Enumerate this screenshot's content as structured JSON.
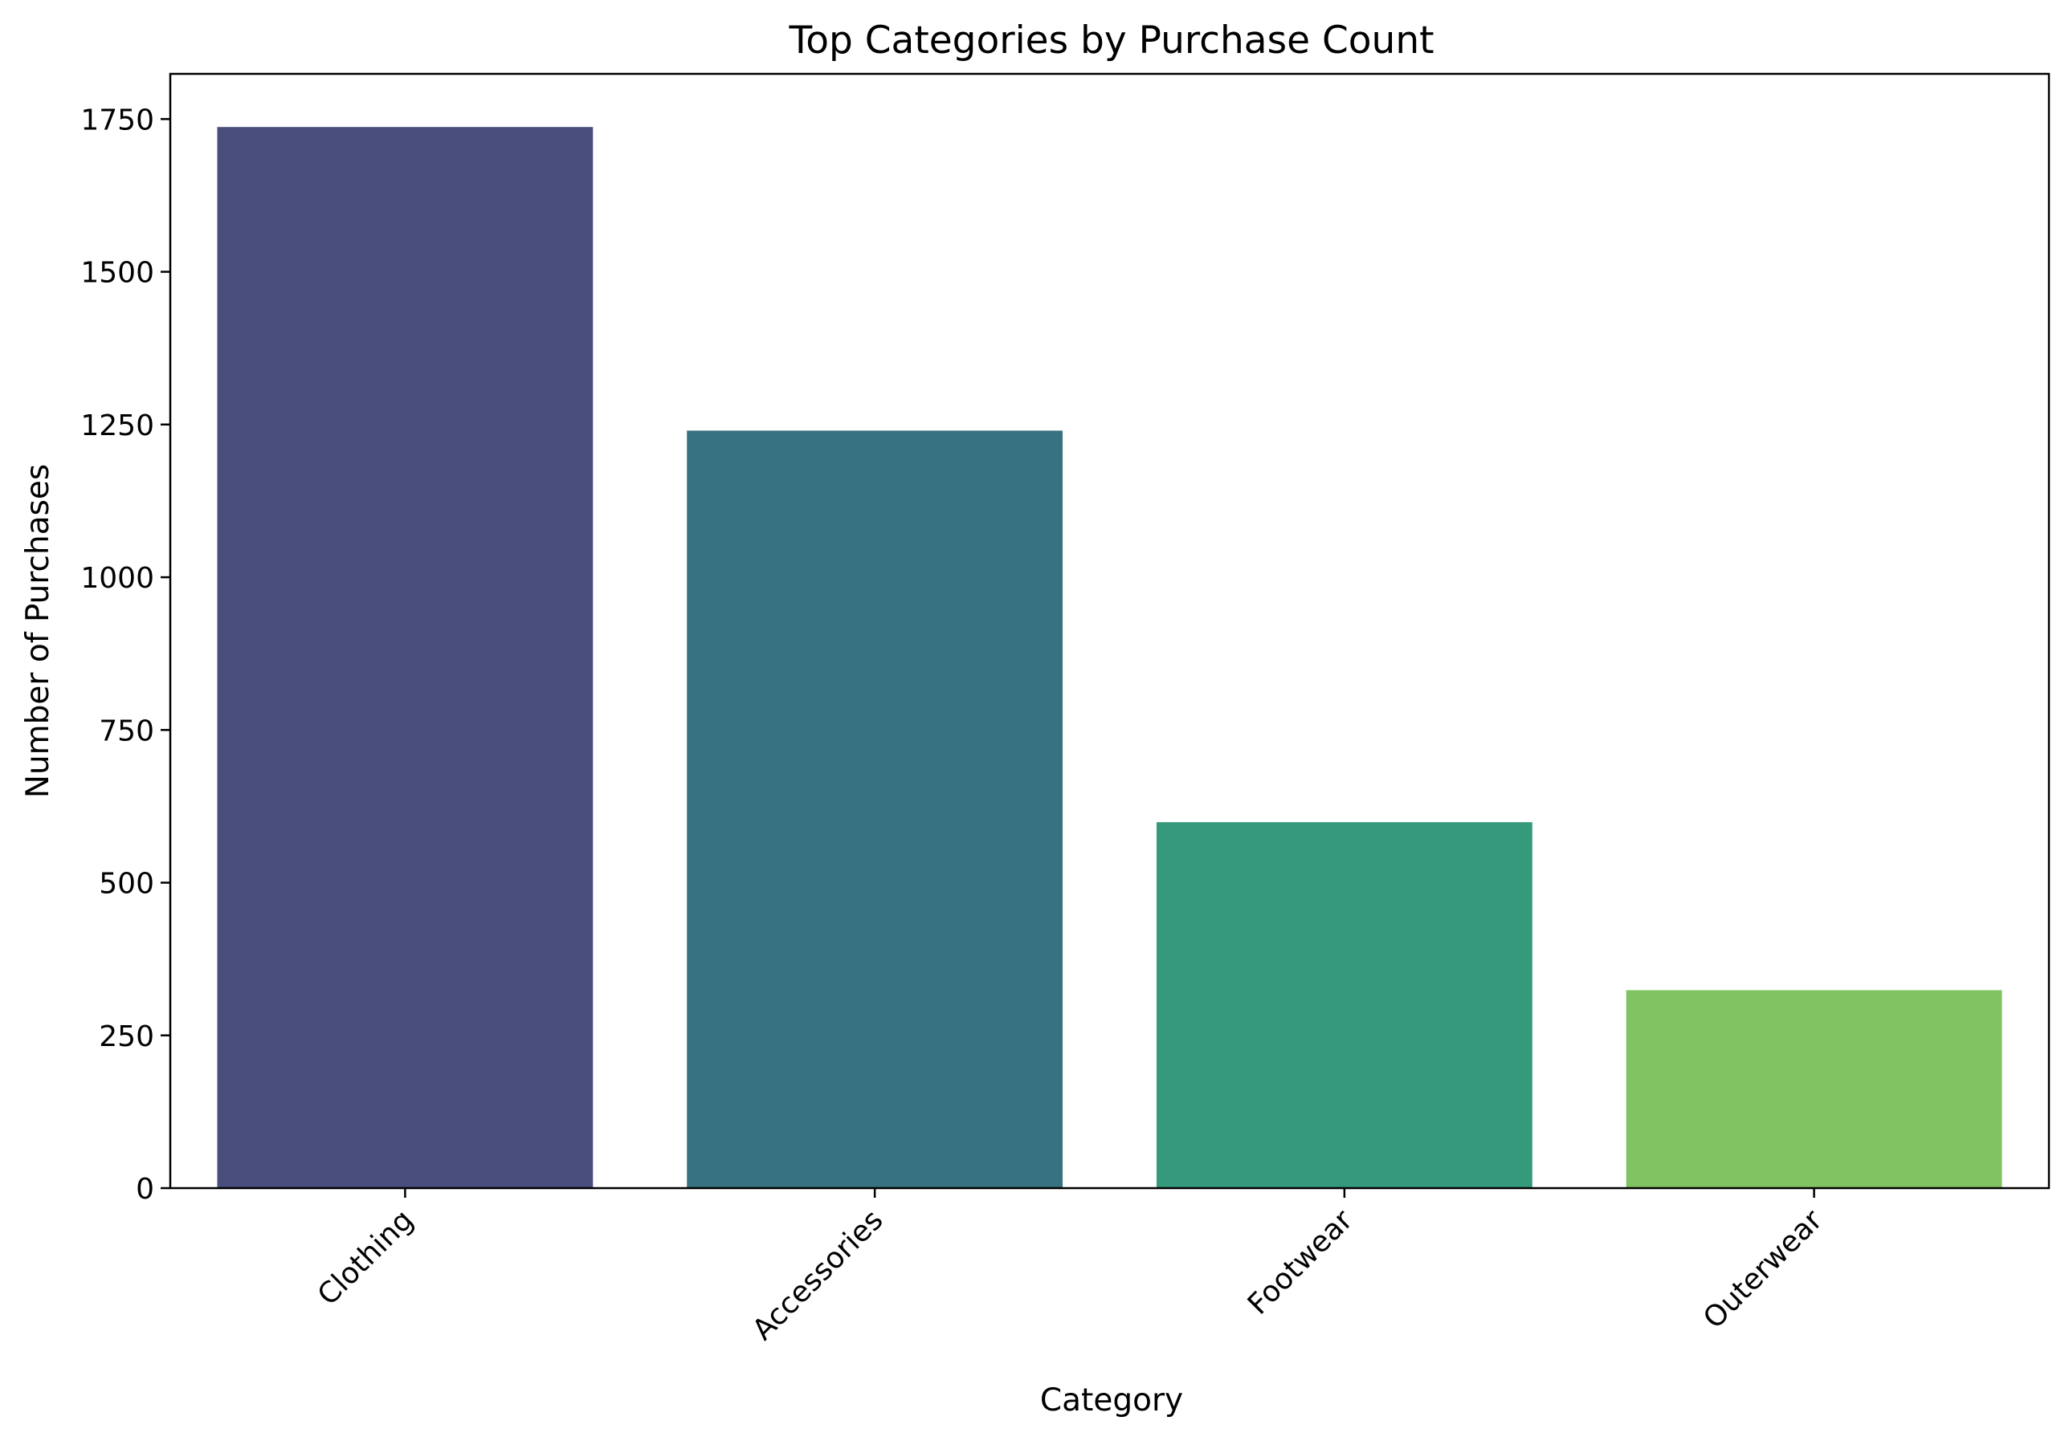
{
  "chart_data": {
    "type": "bar",
    "title": "Top Categories by Purchase Count",
    "xlabel": "Category",
    "ylabel": "Number of Purchases",
    "categories": [
      "Clothing",
      "Accessories",
      "Footwear",
      "Outerwear"
    ],
    "values": [
      1737,
      1240,
      599,
      324
    ],
    "colors": [
      "#4a4e7c",
      "#377280",
      "#359a7c",
      "#81c262"
    ],
    "ylim": [
      0,
      1824
    ],
    "yticks": [
      0,
      250,
      500,
      750,
      1000,
      1250,
      1500,
      1750
    ],
    "grid": false,
    "legend": "none",
    "xtick_rotation_deg": 45
  }
}
